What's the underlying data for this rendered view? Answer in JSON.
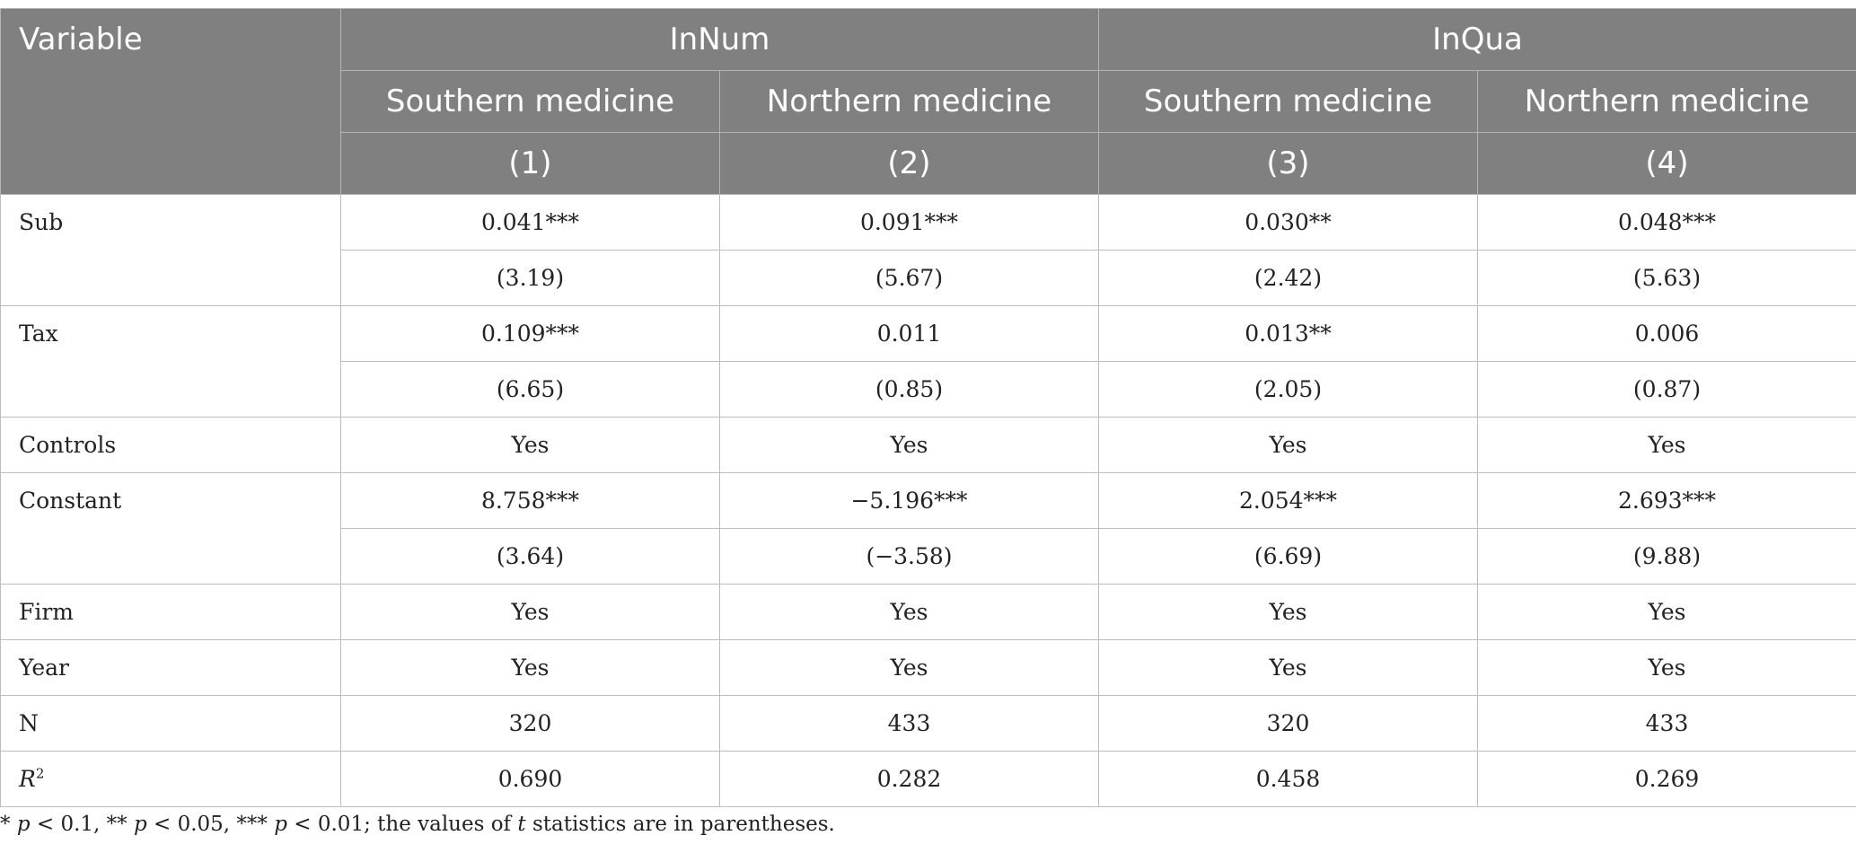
{
  "header": {
    "variable": "Variable",
    "groups": [
      "InNum",
      "InQua"
    ],
    "subgroups": [
      "Southern medicine",
      "Northern medicine",
      "Southern medicine",
      "Northern medicine"
    ],
    "columns": [
      "(1)",
      "(2)",
      "(3)",
      "(4)"
    ]
  },
  "rows": {
    "sub": {
      "label": "Sub",
      "coef": [
        "0.041***",
        "0.091***",
        "0.030**",
        "0.048***"
      ],
      "t": [
        "(3.19)",
        "(5.67)",
        "(2.42)",
        "(5.63)"
      ]
    },
    "tax": {
      "label": "Tax",
      "coef": [
        "0.109***",
        "0.011",
        "0.013**",
        "0.006"
      ],
      "t": [
        "(6.65)",
        "(0.85)",
        "(2.05)",
        "(0.87)"
      ]
    },
    "controls": {
      "label": "Controls",
      "values": [
        "Yes",
        "Yes",
        "Yes",
        "Yes"
      ]
    },
    "constant": {
      "label": "Constant",
      "coef": [
        "8.758***",
        "−5.196***",
        "2.054***",
        "2.693***"
      ],
      "t": [
        "(3.64)",
        "(−3.58)",
        "(6.69)",
        "(9.88)"
      ]
    },
    "firm": {
      "label": "Firm",
      "values": [
        "Yes",
        "Yes",
        "Yes",
        "Yes"
      ]
    },
    "year": {
      "label": "Year",
      "values": [
        "Yes",
        "Yes",
        "Yes",
        "Yes"
      ]
    },
    "n": {
      "label": "N",
      "values": [
        "320",
        "433",
        "320",
        "433"
      ]
    },
    "r2": {
      "label_main": "R",
      "label_sup": "2",
      "values": [
        "0.690",
        "0.282",
        "0.458",
        "0.269"
      ]
    }
  },
  "footnote": {
    "part1": "* ",
    "p1": "p",
    "part2": " < 0.1, ** ",
    "p2": "p",
    "part3": " < 0.05, *** ",
    "p3": "p",
    "part4": " < 0.01; the values of ",
    "t": "t",
    "part5": " statistics are in parentheses."
  },
  "colors": {
    "header_bg": "#808080",
    "header_text": "#ffffff",
    "grid": "#bdbdbd",
    "body_text": "#222222"
  }
}
